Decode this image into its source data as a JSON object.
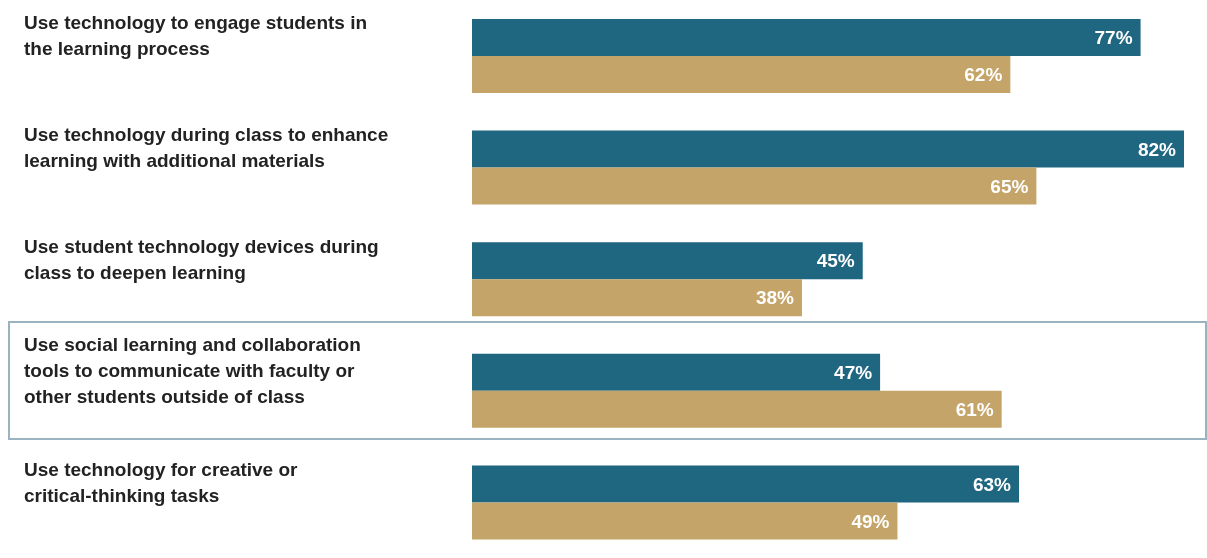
{
  "chart_data": {
    "type": "bar",
    "orientation": "horizontal",
    "categories": [
      "Use technology to engage students in the learning process",
      "Use technology during class to enhance learning with additional materials",
      "Use student technology devices during class to deepen learning",
      "Use social learning and collaboration tools to communicate with faculty or other students outside of class",
      "Use technology for creative or critical-thinking tasks"
    ],
    "series": [
      {
        "color": "#1f6680",
        "values": [
          77,
          82,
          45,
          47,
          63
        ],
        "value_labels": [
          "77%",
          "82%",
          "45%",
          "47%",
          "63%"
        ]
      },
      {
        "color": "#c4a468",
        "values": [
          62,
          65,
          38,
          61,
          49
        ],
        "value_labels": [
          "62%",
          "65%",
          "38%",
          "61%",
          "49%"
        ]
      }
    ],
    "legend": false,
    "grid": false
  }
}
